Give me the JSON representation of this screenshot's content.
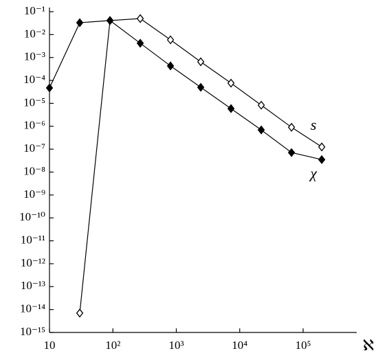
{
  "chart_data": {
    "type": "line",
    "log_x": true,
    "log_y": true,
    "x_label": "ℵ",
    "x": [
      10,
      30,
      90,
      270,
      810,
      2430,
      7290,
      21870,
      65610,
      196830
    ],
    "series": [
      {
        "name": "s",
        "color": "#000000",
        "marker": "open-diamond",
        "values": [
          null,
          7e-15,
          0.041,
          0.05,
          0.0059,
          0.00065,
          7.6e-05,
          8.3e-06,
          9e-07,
          1.25e-07
        ]
      },
      {
        "name": "χ",
        "color": "#000000",
        "marker": "filled-diamond",
        "values": [
          4.7e-05,
          0.033,
          0.041,
          0.0042,
          0.00043,
          5e-05,
          5.9e-06,
          6.9e-07,
          7.1e-08,
          3.5e-08
        ]
      }
    ],
    "xlim": [
      10,
      700000
    ],
    "xticks": [
      10,
      {
        "value": 100,
        "label": "10²"
      },
      {
        "value": 1000,
        "label": "10³"
      },
      {
        "value": 10000,
        "label": "10⁴"
      },
      {
        "value": 100000,
        "label": "10⁵"
      }
    ],
    "ylim": [
      1e-15,
      0.1
    ],
    "yticks": [
      {
        "value": 1e-15,
        "label": "10⁻¹⁵"
      },
      {
        "value": 1e-14,
        "label": "10⁻¹⁴"
      },
      {
        "value": 1e-13,
        "label": "10⁻¹³"
      },
      {
        "value": 1e-12,
        "label": "10⁻¹²"
      },
      {
        "value": 1e-11,
        "label": "10⁻¹¹"
      },
      {
        "value": 1e-10,
        "label": "10⁻¹⁰"
      },
      {
        "value": 1e-09,
        "label": "10⁻⁹"
      },
      {
        "value": 1e-08,
        "label": "10⁻⁸"
      },
      {
        "value": 1e-07,
        "label": "10⁻⁷"
      },
      {
        "value": 1e-06,
        "label": "10⁻⁶"
      },
      {
        "value": 1e-05,
        "label": "10⁻⁵"
      },
      {
        "value": 0.0001,
        "label": "10⁻⁴"
      },
      {
        "value": 0.001,
        "label": "10⁻³"
      },
      {
        "value": 0.01,
        "label": "10⁻²"
      },
      {
        "value": 0.1,
        "label": "10⁻¹"
      }
    ],
    "grid": false
  }
}
